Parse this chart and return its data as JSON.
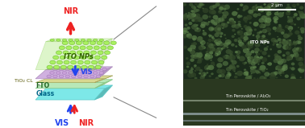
{
  "title": "",
  "background_color": "#ffffff",
  "fig_width": 3.78,
  "fig_height": 1.59,
  "dpi": 100,
  "glass_color": "#7de8e8",
  "glass_edge_color": "#5cc8c8",
  "fto_color": "#b8e8b8",
  "fto_edge_color": "#88c888",
  "tio2_color": "#d8d890",
  "tio2_edge_color": "#a8a860",
  "perovskite_color": "#d0b0e0",
  "perovskite_np_color": "#c8a0d8",
  "ito_color": "#90e050",
  "ito_np_color": "#a8f060",
  "arrow_red_color": "#ee2222",
  "arrow_blue_color": "#2244ee",
  "arrow_red2_color": "#ee2222",
  "arrow_blue2_color": "#2244ee",
  "label_fto": "FTO",
  "label_tio2": "TiO₂ CL",
  "label_glass": "Glass",
  "label_ito_nps": "ITO NPs",
  "label_vis": "VIS",
  "label_nir_top": "NIR",
  "label_vis_bot": "VIS",
  "label_nir_bot": "NIR",
  "sem_labels": [
    "ITO NPs",
    "Tin Perovskite / Al₂O₃",
    "Tin Perovskite / TiO₂"
  ],
  "sem_scalebar": "2 μm",
  "line_color_connector": "#888888"
}
